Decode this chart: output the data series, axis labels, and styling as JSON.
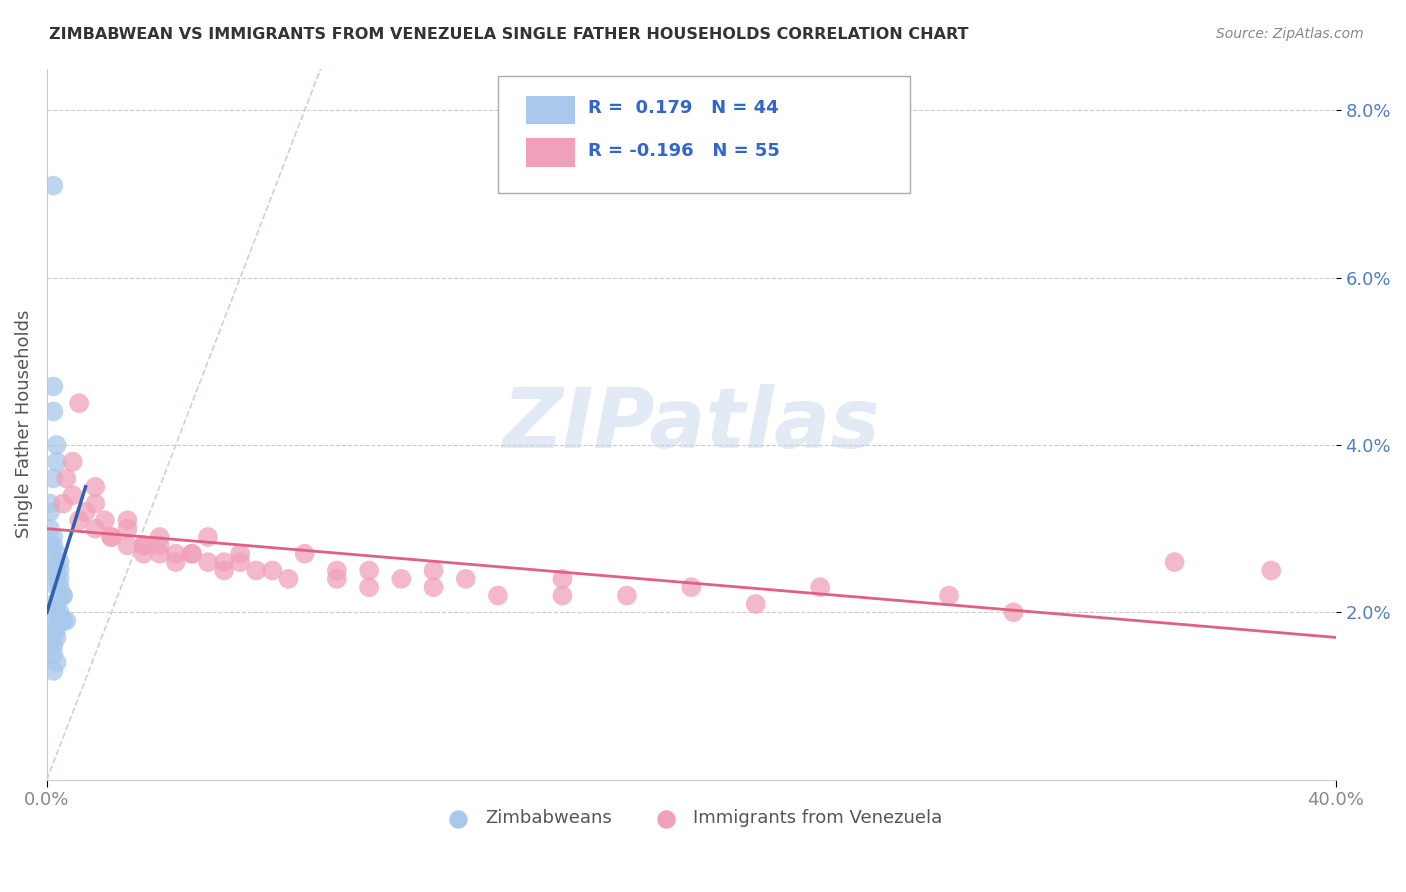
{
  "title": "ZIMBABWEAN VS IMMIGRANTS FROM VENEZUELA SINGLE FATHER HOUSEHOLDS CORRELATION CHART",
  "source": "Source: ZipAtlas.com",
  "ylabel": "Single Father Households",
  "ylim": [
    0,
    0.085
  ],
  "xlim": [
    0,
    0.4
  ],
  "yticks": [
    0.02,
    0.04,
    0.06,
    0.08
  ],
  "ytick_labels": [
    "2.0%",
    "4.0%",
    "6.0%",
    "8.0%"
  ],
  "blue_color": "#A8C8EC",
  "pink_color": "#F0A0B8",
  "blue_line_color": "#3060B0",
  "pink_line_color": "#E06080",
  "diagonal_color": "#B0C8E8",
  "watermark_color": "#D0DCF0",
  "zimbabwean_x": [
    0.002,
    0.002,
    0.002,
    0.003,
    0.003,
    0.002,
    0.001,
    0.001,
    0.001,
    0.002,
    0.003,
    0.004,
    0.004,
    0.003,
    0.003,
    0.004,
    0.004,
    0.003,
    0.005,
    0.005,
    0.004,
    0.003,
    0.002,
    0.002,
    0.003,
    0.004,
    0.005,
    0.006,
    0.005,
    0.004,
    0.003,
    0.002,
    0.001,
    0.002,
    0.003,
    0.002,
    0.001,
    0.002,
    0.003,
    0.002,
    0.001,
    0.002,
    0.001,
    0.002
  ],
  "zimbabwean_y": [
    0.071,
    0.047,
    0.044,
    0.04,
    0.038,
    0.036,
    0.033,
    0.032,
    0.03,
    0.028,
    0.027,
    0.026,
    0.025,
    0.025,
    0.024,
    0.024,
    0.023,
    0.023,
    0.022,
    0.022,
    0.022,
    0.021,
    0.021,
    0.02,
    0.02,
    0.02,
    0.019,
    0.019,
    0.019,
    0.019,
    0.018,
    0.018,
    0.018,
    0.017,
    0.017,
    0.016,
    0.016,
    0.015,
    0.014,
    0.013,
    0.025,
    0.026,
    0.028,
    0.029
  ],
  "venezuela_x": [
    0.005,
    0.01,
    0.015,
    0.02,
    0.025,
    0.03,
    0.035,
    0.04,
    0.05,
    0.06,
    0.008,
    0.015,
    0.025,
    0.035,
    0.045,
    0.055,
    0.07,
    0.09,
    0.11,
    0.13,
    0.006,
    0.012,
    0.02,
    0.03,
    0.04,
    0.055,
    0.075,
    0.1,
    0.14,
    0.18,
    0.008,
    0.018,
    0.03,
    0.045,
    0.065,
    0.09,
    0.12,
    0.16,
    0.22,
    0.3,
    0.01,
    0.025,
    0.05,
    0.08,
    0.12,
    0.2,
    0.28,
    0.35,
    0.38,
    0.015,
    0.035,
    0.06,
    0.1,
    0.16,
    0.24
  ],
  "venezuela_y": [
    0.033,
    0.031,
    0.03,
    0.029,
    0.028,
    0.028,
    0.027,
    0.027,
    0.026,
    0.026,
    0.038,
    0.033,
    0.03,
    0.028,
    0.027,
    0.026,
    0.025,
    0.025,
    0.024,
    0.024,
    0.036,
    0.032,
    0.029,
    0.027,
    0.026,
    0.025,
    0.024,
    0.023,
    0.022,
    0.022,
    0.034,
    0.031,
    0.028,
    0.027,
    0.025,
    0.024,
    0.023,
    0.022,
    0.021,
    0.02,
    0.045,
    0.031,
    0.029,
    0.027,
    0.025,
    0.023,
    0.022,
    0.026,
    0.025,
    0.035,
    0.029,
    0.027,
    0.025,
    0.024,
    0.023
  ],
  "blue_trend_x": [
    0.0,
    0.012
  ],
  "blue_trend_y": [
    0.02,
    0.035
  ],
  "pink_trend_x": [
    0.0,
    0.4
  ],
  "pink_trend_y": [
    0.03,
    0.017
  ]
}
